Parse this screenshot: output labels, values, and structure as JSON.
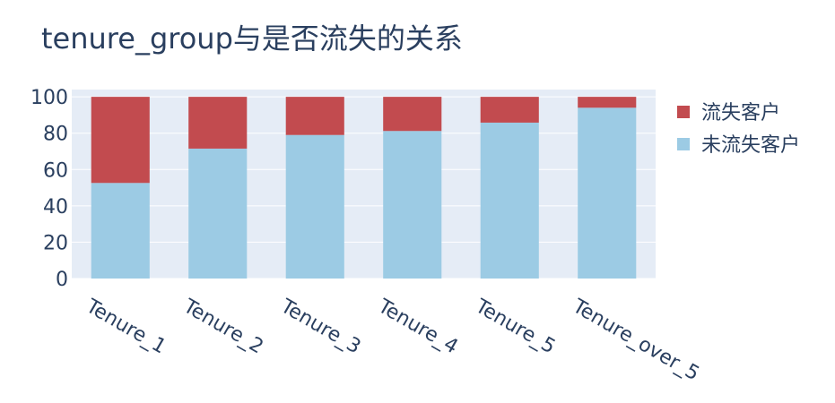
{
  "chart_data": {
    "type": "bar",
    "stacked": true,
    "title": "tenure_group与是否流失的关系",
    "xlabel": "",
    "ylabel": "",
    "categories": [
      "Tenure_1",
      "Tenure_2",
      "Tenure_3",
      "Tenure_4",
      "Tenure_5",
      "Tenure_over_5"
    ],
    "ylim": [
      0,
      104
    ],
    "yticks": [
      0,
      20,
      40,
      60,
      80,
      100
    ],
    "grid": true,
    "legend_position": "right",
    "series": [
      {
        "name": "未流失客户",
        "color": "#9ccbe4",
        "values": [
          52.6,
          71.5,
          79,
          81.2,
          85.8,
          94
        ]
      },
      {
        "name": "流失客户",
        "color": "#c24b4f",
        "values": [
          47.4,
          28.5,
          21,
          18.8,
          14.2,
          6
        ]
      }
    ],
    "legend": [
      {
        "name": "流失客户",
        "color": "#c24b4f"
      },
      {
        "name": "未流失客户",
        "color": "#9ccbe4"
      }
    ],
    "plot_bg": "#e5ecf6",
    "text_color": "#2a3f5f"
  }
}
